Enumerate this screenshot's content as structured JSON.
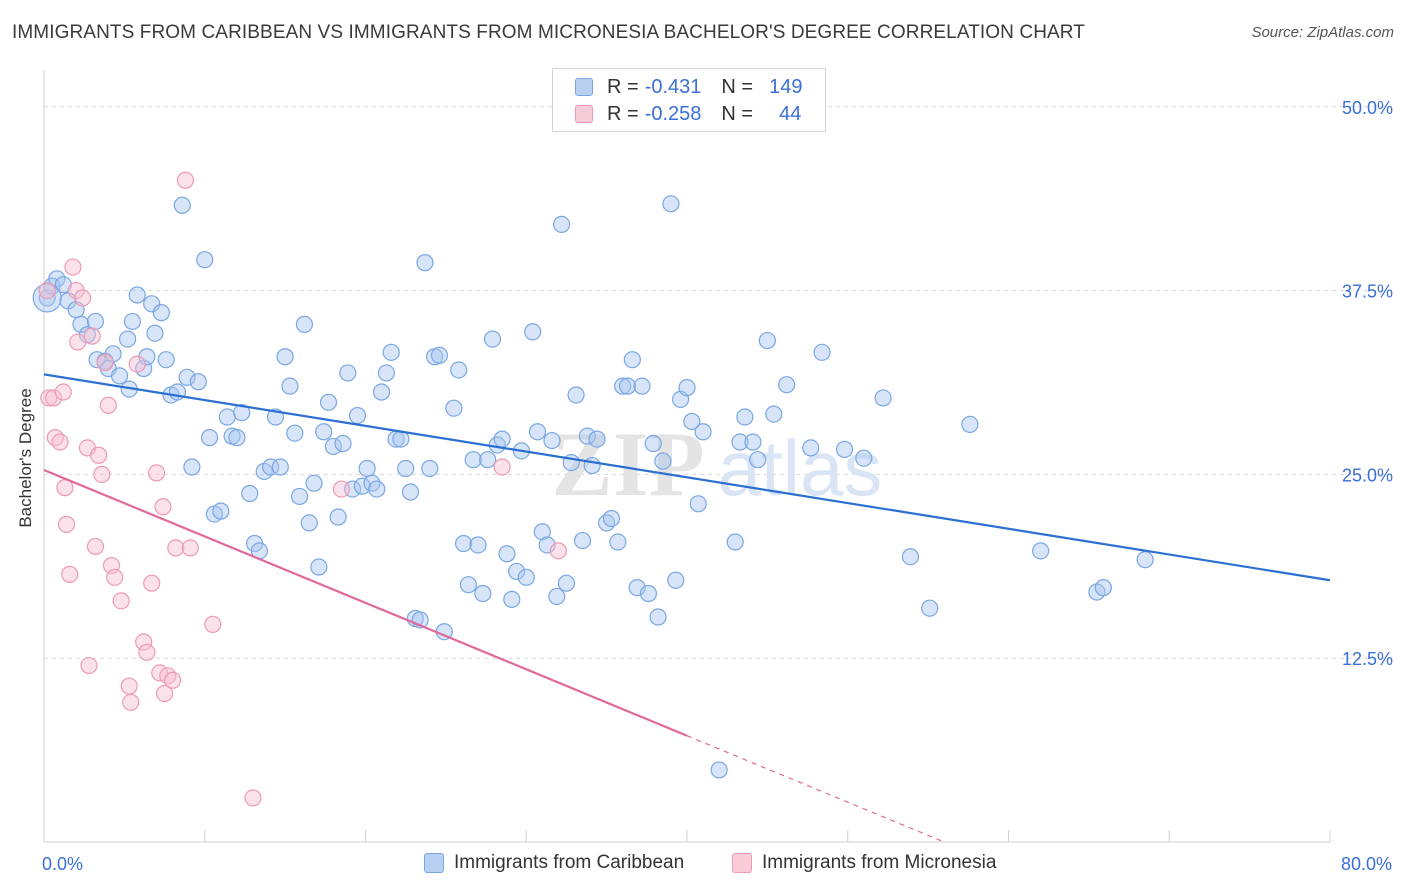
{
  "title": "IMMIGRANTS FROM CARIBBEAN VS IMMIGRANTS FROM MICRONESIA BACHELOR'S DEGREE CORRELATION CHART",
  "source": "Source: ZipAtlas.com",
  "watermark": {
    "zip": "ZIP",
    "atlas": "atlas"
  },
  "legend_top": [
    {
      "r_label": "R =",
      "r_value": "-0.431",
      "n_label": "N =",
      "n_value": "149"
    },
    {
      "r_label": "R =",
      "r_value": "-0.258",
      "n_label": "N =",
      "n_value": "44"
    }
  ],
  "colors": {
    "blue_fill": "#a9c6ef",
    "blue_stroke": "#7aa7e3",
    "blue_line": "#2b6fd1",
    "pink_fill": "#f6bfd0",
    "pink_stroke": "#ee9ab5",
    "pink_line": "#e0689a",
    "grid": "#d8d8d8",
    "axis_text": "#3a6fd8"
  },
  "chart_data": {
    "type": "scatter",
    "title": "IMMIGRANTS FROM CARIBBEAN VS IMMIGRANTS FROM MICRONESIA BACHELOR'S DEGREE CORRELATION CHART",
    "xlabel": "",
    "ylabel": "Bachelor's Degree",
    "xlim": [
      0,
      80
    ],
    "ylim": [
      0,
      52.5
    ],
    "x_tick_labels": [
      {
        "value": 0,
        "label": "0.0%"
      },
      {
        "value": 80,
        "label": "80.0%"
      }
    ],
    "y_tick_labels": [
      {
        "value": 12.5,
        "label": "12.5%"
      },
      {
        "value": 25,
        "label": "25.0%"
      },
      {
        "value": 37.5,
        "label": "37.5%"
      },
      {
        "value": 50,
        "label": "50.0%"
      }
    ],
    "grid": true,
    "legend_position": "bottom",
    "series": [
      {
        "name": "Immigrants from Caribbean",
        "color": "#a9c6ef",
        "trend": {
          "x": [
            0,
            80
          ],
          "y": [
            31.8,
            17.8
          ],
          "dashed_from": null
        },
        "points": [
          [
            0.2,
            37.0
          ],
          [
            0.5,
            37.8
          ],
          [
            0.8,
            38.3
          ],
          [
            1.2,
            37.9
          ],
          [
            1.5,
            36.8
          ],
          [
            2.0,
            36.2
          ],
          [
            2.3,
            35.2
          ],
          [
            2.7,
            34.5
          ],
          [
            3.2,
            35.4
          ],
          [
            3.3,
            32.8
          ],
          [
            3.8,
            32.7
          ],
          [
            4.0,
            32.2
          ],
          [
            4.3,
            33.2
          ],
          [
            4.7,
            31.7
          ],
          [
            5.2,
            34.2
          ],
          [
            5.5,
            35.4
          ],
          [
            5.3,
            30.8
          ],
          [
            5.8,
            37.2
          ],
          [
            6.2,
            32.2
          ],
          [
            6.4,
            33.0
          ],
          [
            6.7,
            36.6
          ],
          [
            6.9,
            34.6
          ],
          [
            7.3,
            36.0
          ],
          [
            7.6,
            32.8
          ],
          [
            7.9,
            30.4
          ],
          [
            8.3,
            30.6
          ],
          [
            8.6,
            43.3
          ],
          [
            8.9,
            31.6
          ],
          [
            9.2,
            25.5
          ],
          [
            9.6,
            31.3
          ],
          [
            10.0,
            39.6
          ],
          [
            10.3,
            27.5
          ],
          [
            10.6,
            22.3
          ],
          [
            11.0,
            22.5
          ],
          [
            11.4,
            28.9
          ],
          [
            11.7,
            27.6
          ],
          [
            12.0,
            27.5
          ],
          [
            12.3,
            29.2
          ],
          [
            12.8,
            23.7
          ],
          [
            13.1,
            20.3
          ],
          [
            13.4,
            19.8
          ],
          [
            13.7,
            25.2
          ],
          [
            14.1,
            25.5
          ],
          [
            14.4,
            28.9
          ],
          [
            14.7,
            25.5
          ],
          [
            15.0,
            33.0
          ],
          [
            15.3,
            31.0
          ],
          [
            15.6,
            27.8
          ],
          [
            15.9,
            23.5
          ],
          [
            16.2,
            35.2
          ],
          [
            16.5,
            21.7
          ],
          [
            16.8,
            24.4
          ],
          [
            17.1,
            18.7
          ],
          [
            17.4,
            27.9
          ],
          [
            17.7,
            29.9
          ],
          [
            18.0,
            26.9
          ],
          [
            18.3,
            22.1
          ],
          [
            18.6,
            27.1
          ],
          [
            18.9,
            31.9
          ],
          [
            19.2,
            24.0
          ],
          [
            19.5,
            29.0
          ],
          [
            19.8,
            24.2
          ],
          [
            20.1,
            25.4
          ],
          [
            20.4,
            24.4
          ],
          [
            20.7,
            24.0
          ],
          [
            21.0,
            30.6
          ],
          [
            21.3,
            31.9
          ],
          [
            21.6,
            33.3
          ],
          [
            21.9,
            27.4
          ],
          [
            22.2,
            27.4
          ],
          [
            22.5,
            25.4
          ],
          [
            22.8,
            23.8
          ],
          [
            23.1,
            15.2
          ],
          [
            23.4,
            15.1
          ],
          [
            23.7,
            39.4
          ],
          [
            24.0,
            25.4
          ],
          [
            24.3,
            33.0
          ],
          [
            24.6,
            33.1
          ],
          [
            24.9,
            14.3
          ],
          [
            25.5,
            29.5
          ],
          [
            25.8,
            32.1
          ],
          [
            26.1,
            20.3
          ],
          [
            26.4,
            17.5
          ],
          [
            26.7,
            26.0
          ],
          [
            27.0,
            20.2
          ],
          [
            27.3,
            16.9
          ],
          [
            27.6,
            26.0
          ],
          [
            27.9,
            34.2
          ],
          [
            28.2,
            27.0
          ],
          [
            28.5,
            27.4
          ],
          [
            28.8,
            19.6
          ],
          [
            29.1,
            16.5
          ],
          [
            29.4,
            18.4
          ],
          [
            29.7,
            26.6
          ],
          [
            30.0,
            18.0
          ],
          [
            30.4,
            34.7
          ],
          [
            30.7,
            27.9
          ],
          [
            31.0,
            21.1
          ],
          [
            31.3,
            20.2
          ],
          [
            31.6,
            27.3
          ],
          [
            31.9,
            16.7
          ],
          [
            32.2,
            42.0
          ],
          [
            32.5,
            17.6
          ],
          [
            32.8,
            25.8
          ],
          [
            33.1,
            30.4
          ],
          [
            33.5,
            20.5
          ],
          [
            33.8,
            27.6
          ],
          [
            34.1,
            25.6
          ],
          [
            34.4,
            27.4
          ],
          [
            35.0,
            21.7
          ],
          [
            35.3,
            22.0
          ],
          [
            35.7,
            20.4
          ],
          [
            36.0,
            31.0
          ],
          [
            36.3,
            31.0
          ],
          [
            36.6,
            32.8
          ],
          [
            36.9,
            17.3
          ],
          [
            37.2,
            31.0
          ],
          [
            37.6,
            16.9
          ],
          [
            37.9,
            27.1
          ],
          [
            38.2,
            15.3
          ],
          [
            38.5,
            25.9
          ],
          [
            39.0,
            43.4
          ],
          [
            39.3,
            17.8
          ],
          [
            39.6,
            30.1
          ],
          [
            40.0,
            30.9
          ],
          [
            40.3,
            28.6
          ],
          [
            40.7,
            23.0
          ],
          [
            41.0,
            27.9
          ],
          [
            42.0,
            4.9
          ],
          [
            43.0,
            20.4
          ],
          [
            43.3,
            27.2
          ],
          [
            43.6,
            28.9
          ],
          [
            44.1,
            27.2
          ],
          [
            44.4,
            26.0
          ],
          [
            45.0,
            34.1
          ],
          [
            45.4,
            29.1
          ],
          [
            46.2,
            31.1
          ],
          [
            47.7,
            26.8
          ],
          [
            48.4,
            33.3
          ],
          [
            49.8,
            26.7
          ],
          [
            51.0,
            26.1
          ],
          [
            52.2,
            30.2
          ],
          [
            53.9,
            19.4
          ],
          [
            55.1,
            15.9
          ],
          [
            57.6,
            28.4
          ],
          [
            62.0,
            19.8
          ],
          [
            65.5,
            17.0
          ],
          [
            65.9,
            17.3
          ],
          [
            68.5,
            19.2
          ]
        ]
      },
      {
        "name": "Immigrants from Micronesia",
        "color": "#f6bfd0",
        "trend": {
          "x": [
            0,
            56
          ],
          "y": [
            25.3,
            0
          ],
          "dashed_from": 40
        },
        "points": [
          [
            0.2,
            37.5
          ],
          [
            0.3,
            30.2
          ],
          [
            0.6,
            30.2
          ],
          [
            0.7,
            27.5
          ],
          [
            1.0,
            27.2
          ],
          [
            1.2,
            30.6
          ],
          [
            1.3,
            24.1
          ],
          [
            1.4,
            21.6
          ],
          [
            1.6,
            18.2
          ],
          [
            1.8,
            39.1
          ],
          [
            2.0,
            37.5
          ],
          [
            2.1,
            34.0
          ],
          [
            2.4,
            37.0
          ],
          [
            2.7,
            26.8
          ],
          [
            2.8,
            12.0
          ],
          [
            3.0,
            34.4
          ],
          [
            3.2,
            20.1
          ],
          [
            3.4,
            26.3
          ],
          [
            3.6,
            25.0
          ],
          [
            3.8,
            32.6
          ],
          [
            4.0,
            29.7
          ],
          [
            4.2,
            18.8
          ],
          [
            4.4,
            18.0
          ],
          [
            4.8,
            16.4
          ],
          [
            5.3,
            10.6
          ],
          [
            5.4,
            9.5
          ],
          [
            5.8,
            32.5
          ],
          [
            6.2,
            13.6
          ],
          [
            6.4,
            12.9
          ],
          [
            6.7,
            17.6
          ],
          [
            7.0,
            25.1
          ],
          [
            7.2,
            11.5
          ],
          [
            7.4,
            22.8
          ],
          [
            7.5,
            10.1
          ],
          [
            7.7,
            11.3
          ],
          [
            8.0,
            11.0
          ],
          [
            8.2,
            20.0
          ],
          [
            8.8,
            45.0
          ],
          [
            9.1,
            20.0
          ],
          [
            10.5,
            14.8
          ],
          [
            13.0,
            3.0
          ],
          [
            18.5,
            24.0
          ],
          [
            28.5,
            25.5
          ],
          [
            32.0,
            19.8
          ]
        ]
      }
    ]
  },
  "legend_bottom": [
    {
      "label": "Immigrants from Caribbean"
    },
    {
      "label": "Immigrants from Micronesia"
    }
  ]
}
